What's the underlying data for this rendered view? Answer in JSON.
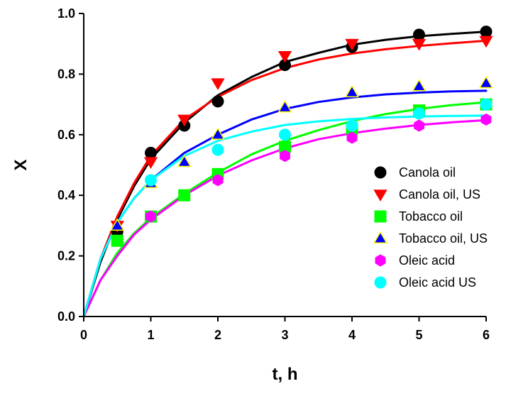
{
  "chart_data": {
    "type": "scatter",
    "xlabel": "t, h",
    "ylabel": "X",
    "xlim": [
      0,
      6
    ],
    "ylim": [
      0,
      1.0
    ],
    "xticks": [
      "0",
      "1",
      "2",
      "3",
      "4",
      "5",
      "6"
    ],
    "yticks": [
      "0.0",
      "0.2",
      "0.4",
      "0.6",
      "0.8",
      "1.0"
    ],
    "legend_position": "right",
    "series": [
      {
        "name": "Canola oil",
        "marker": "circle",
        "color": "#000000",
        "stroke": "#000000",
        "points": [
          [
            0.5,
            0.28
          ],
          [
            1,
            0.54
          ],
          [
            1.5,
            0.63
          ],
          [
            2,
            0.71
          ],
          [
            3,
            0.83
          ],
          [
            4,
            0.89
          ],
          [
            5,
            0.93
          ],
          [
            6,
            0.94
          ]
        ],
        "fit": [
          [
            0,
            0.0
          ],
          [
            0.25,
            0.18
          ],
          [
            0.5,
            0.32
          ],
          [
            0.75,
            0.43
          ],
          [
            1,
            0.52
          ],
          [
            1.5,
            0.64
          ],
          [
            2,
            0.73
          ],
          [
            2.5,
            0.79
          ],
          [
            3,
            0.84
          ],
          [
            3.5,
            0.87
          ],
          [
            4,
            0.897
          ],
          [
            4.5,
            0.913
          ],
          [
            5,
            0.925
          ],
          [
            5.5,
            0.933
          ],
          [
            6,
            0.94
          ]
        ]
      },
      {
        "name": "Canola oil, US",
        "marker": "triangle-down",
        "color": "#ff0000",
        "stroke": "#ff0000",
        "points": [
          [
            0.5,
            0.3
          ],
          [
            1,
            0.51
          ],
          [
            1.5,
            0.65
          ],
          [
            2,
            0.77
          ],
          [
            3,
            0.86
          ],
          [
            4,
            0.9
          ],
          [
            5,
            0.9
          ],
          [
            6,
            0.91
          ]
        ],
        "fit": [
          [
            0,
            0.0
          ],
          [
            0.25,
            0.19
          ],
          [
            0.5,
            0.33
          ],
          [
            0.75,
            0.44
          ],
          [
            1,
            0.53
          ],
          [
            1.5,
            0.65
          ],
          [
            2,
            0.725
          ],
          [
            2.5,
            0.78
          ],
          [
            3,
            0.82
          ],
          [
            3.5,
            0.848
          ],
          [
            4,
            0.868
          ],
          [
            4.5,
            0.882
          ],
          [
            5,
            0.893
          ],
          [
            5.5,
            0.902
          ],
          [
            6,
            0.91
          ]
        ]
      },
      {
        "name": "Tobacco oil",
        "marker": "square",
        "color": "#00ff00",
        "stroke": "#00ff00",
        "points": [
          [
            0.5,
            0.25
          ],
          [
            1,
            0.33
          ],
          [
            1.5,
            0.4
          ],
          [
            2,
            0.47
          ],
          [
            3,
            0.56
          ],
          [
            4,
            0.62
          ],
          [
            5,
            0.68
          ],
          [
            6,
            0.7
          ]
        ],
        "fit": [
          [
            0,
            0.0
          ],
          [
            0.25,
            0.12
          ],
          [
            0.5,
            0.21
          ],
          [
            0.75,
            0.275
          ],
          [
            1,
            0.325
          ],
          [
            1.5,
            0.405
          ],
          [
            2,
            0.475
          ],
          [
            2.5,
            0.535
          ],
          [
            3,
            0.58
          ],
          [
            3.5,
            0.615
          ],
          [
            4,
            0.645
          ],
          [
            4.5,
            0.668
          ],
          [
            5,
            0.685
          ],
          [
            5.5,
            0.698
          ],
          [
            6,
            0.707
          ]
        ]
      },
      {
        "name": "Tobacco oil, US",
        "marker": "triangle-up",
        "color": "#0000ff",
        "stroke": "#ffff00",
        "points": [
          [
            0.5,
            0.3
          ],
          [
            1,
            0.44
          ],
          [
            1.5,
            0.51
          ],
          [
            2,
            0.6
          ],
          [
            3,
            0.69
          ],
          [
            4,
            0.74
          ],
          [
            5,
            0.76
          ],
          [
            6,
            0.77
          ]
        ],
        "fit": [
          [
            0,
            0.0
          ],
          [
            0.25,
            0.19
          ],
          [
            0.5,
            0.31
          ],
          [
            0.75,
            0.39
          ],
          [
            1,
            0.45
          ],
          [
            1.5,
            0.54
          ],
          [
            2,
            0.6
          ],
          [
            2.5,
            0.65
          ],
          [
            3,
            0.685
          ],
          [
            3.5,
            0.708
          ],
          [
            4,
            0.723
          ],
          [
            4.5,
            0.733
          ],
          [
            5,
            0.739
          ],
          [
            5.5,
            0.743
          ],
          [
            6,
            0.745
          ]
        ]
      },
      {
        "name": "Oleic acid",
        "marker": "hexagon",
        "color": "#ff00ff",
        "stroke": "#ff00ff",
        "points": [
          [
            1,
            0.33
          ],
          [
            2,
            0.45
          ],
          [
            3,
            0.53
          ],
          [
            4,
            0.59
          ],
          [
            5,
            0.63
          ],
          [
            6,
            0.65
          ]
        ],
        "fit": [
          [
            0,
            0.0
          ],
          [
            0.25,
            0.12
          ],
          [
            0.5,
            0.2
          ],
          [
            0.75,
            0.27
          ],
          [
            1,
            0.32
          ],
          [
            1.5,
            0.4
          ],
          [
            2,
            0.465
          ],
          [
            2.5,
            0.515
          ],
          [
            3,
            0.555
          ],
          [
            3.5,
            0.585
          ],
          [
            4,
            0.605
          ],
          [
            4.5,
            0.62
          ],
          [
            5,
            0.632
          ],
          [
            5.5,
            0.641
          ],
          [
            6,
            0.648
          ]
        ]
      },
      {
        "name": "Oleic acid US",
        "marker": "circle",
        "color": "#00ffff",
        "stroke": "#00ffff",
        "points": [
          [
            1,
            0.45
          ],
          [
            2,
            0.55
          ],
          [
            3,
            0.6
          ],
          [
            4,
            0.63
          ],
          [
            5,
            0.67
          ],
          [
            6,
            0.7
          ]
        ],
        "fit": [
          [
            0,
            0.0
          ],
          [
            0.25,
            0.19
          ],
          [
            0.5,
            0.31
          ],
          [
            0.75,
            0.39
          ],
          [
            1,
            0.45
          ],
          [
            1.5,
            0.53
          ],
          [
            2,
            0.58
          ],
          [
            2.5,
            0.61
          ],
          [
            3,
            0.632
          ],
          [
            3.5,
            0.644
          ],
          [
            4,
            0.652
          ],
          [
            4.5,
            0.657
          ],
          [
            5,
            0.66
          ],
          [
            5.5,
            0.662
          ],
          [
            6,
            0.663
          ]
        ]
      }
    ]
  }
}
